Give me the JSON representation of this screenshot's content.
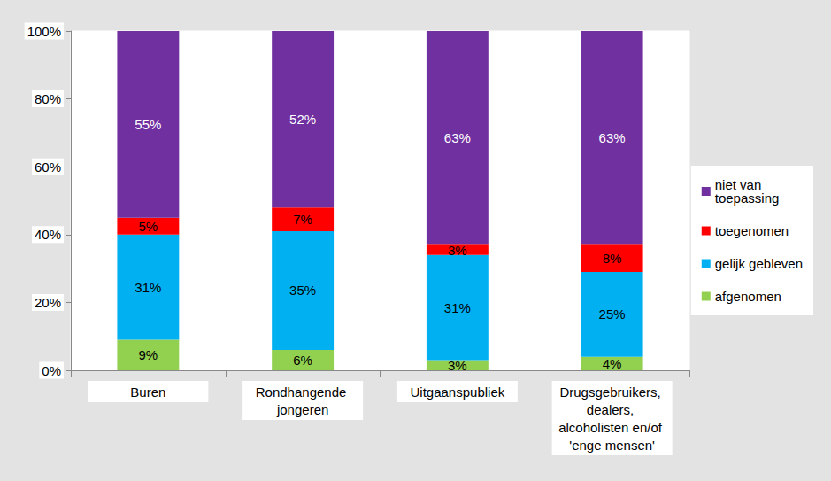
{
  "chart_data": {
    "type": "bar",
    "stacked": true,
    "data_labels": true,
    "grid": false,
    "legend": "right",
    "categories": [
      "Buren",
      "Rondhangende jongeren",
      "Uitgaanspubliek",
      "Drugsgebruikers, dealers, alcoholisten en/of 'enge mensen'"
    ],
    "ylim": [
      0,
      100
    ],
    "yticks": [
      {
        "value": 0,
        "label": "0%"
      },
      {
        "value": 20,
        "label": "20%"
      },
      {
        "value": 40,
        "label": "40%"
      },
      {
        "value": 60,
        "label": "60%"
      },
      {
        "value": 80,
        "label": "80%"
      },
      {
        "value": 100,
        "label": "100%"
      }
    ],
    "series": [
      {
        "name": "afgenomen",
        "color": "#92D050",
        "values": [
          9,
          6,
          3,
          4
        ],
        "value_labels": [
          "9%",
          "6%",
          "3%",
          "4%"
        ]
      },
      {
        "name": "gelijk gebleven",
        "color": "#00B0F0",
        "values": [
          31,
          35,
          31,
          25
        ],
        "value_labels": [
          "31%",
          "35%",
          "31%",
          "25%"
        ]
      },
      {
        "name": "toegenomen",
        "color": "#FF0000",
        "values": [
          5,
          7,
          3,
          8
        ],
        "value_labels": [
          "5%",
          "7%",
          "3%",
          "8%"
        ]
      },
      {
        "name": "niet van toepassing",
        "color": "#7030A0",
        "values": [
          55,
          52,
          63,
          63
        ],
        "value_labels": [
          "55%",
          "52%",
          "63%",
          "63%"
        ]
      }
    ]
  }
}
